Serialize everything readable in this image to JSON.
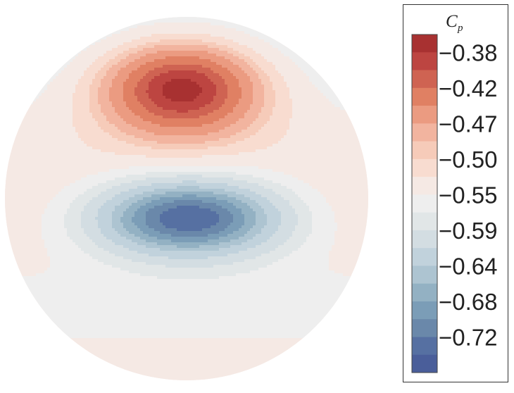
{
  "chart_data": {
    "type": "heatmap",
    "title": "",
    "colorbar": {
      "title": "C",
      "title_subscript": "p",
      "tick_labels": [
        "−0.38",
        "−0.42",
        "−0.47",
        "−0.50",
        "−0.55",
        "−0.59",
        "−0.64",
        "−0.68",
        "−0.72"
      ],
      "levels": [
        {
          "value": -0.36,
          "color": "#a83131"
        },
        {
          "value": -0.38,
          "color": "#bd4541"
        },
        {
          "value": -0.4,
          "color": "#cf6352"
        },
        {
          "value": -0.42,
          "color": "#e08063"
        },
        {
          "value": -0.45,
          "color": "#eb9b81"
        },
        {
          "value": -0.47,
          "color": "#f2b49f"
        },
        {
          "value": -0.49,
          "color": "#f6cbb9"
        },
        {
          "value": -0.5,
          "color": "#f8dcd0"
        },
        {
          "value": -0.53,
          "color": "#f5e9e4"
        },
        {
          "value": -0.55,
          "color": "#eeeeee"
        },
        {
          "value": -0.57,
          "color": "#e1e6e7"
        },
        {
          "value": -0.59,
          "color": "#d3dde2"
        },
        {
          "value": -0.62,
          "color": "#c1d2dc"
        },
        {
          "value": -0.64,
          "color": "#adc4d1"
        },
        {
          "value": -0.66,
          "color": "#93b1c3"
        },
        {
          "value": -0.68,
          "color": "#7b9db7"
        },
        {
          "value": -0.7,
          "color": "#6a88aa"
        },
        {
          "value": -0.72,
          "color": "#5670a2"
        },
        {
          "value": -0.74,
          "color": "#4a5e9a"
        }
      ]
    },
    "field": {
      "shape": "circle",
      "max_region": "upper-center",
      "min_region": "lower-center",
      "max_value": -0.36,
      "min_value": -0.74
    }
  }
}
